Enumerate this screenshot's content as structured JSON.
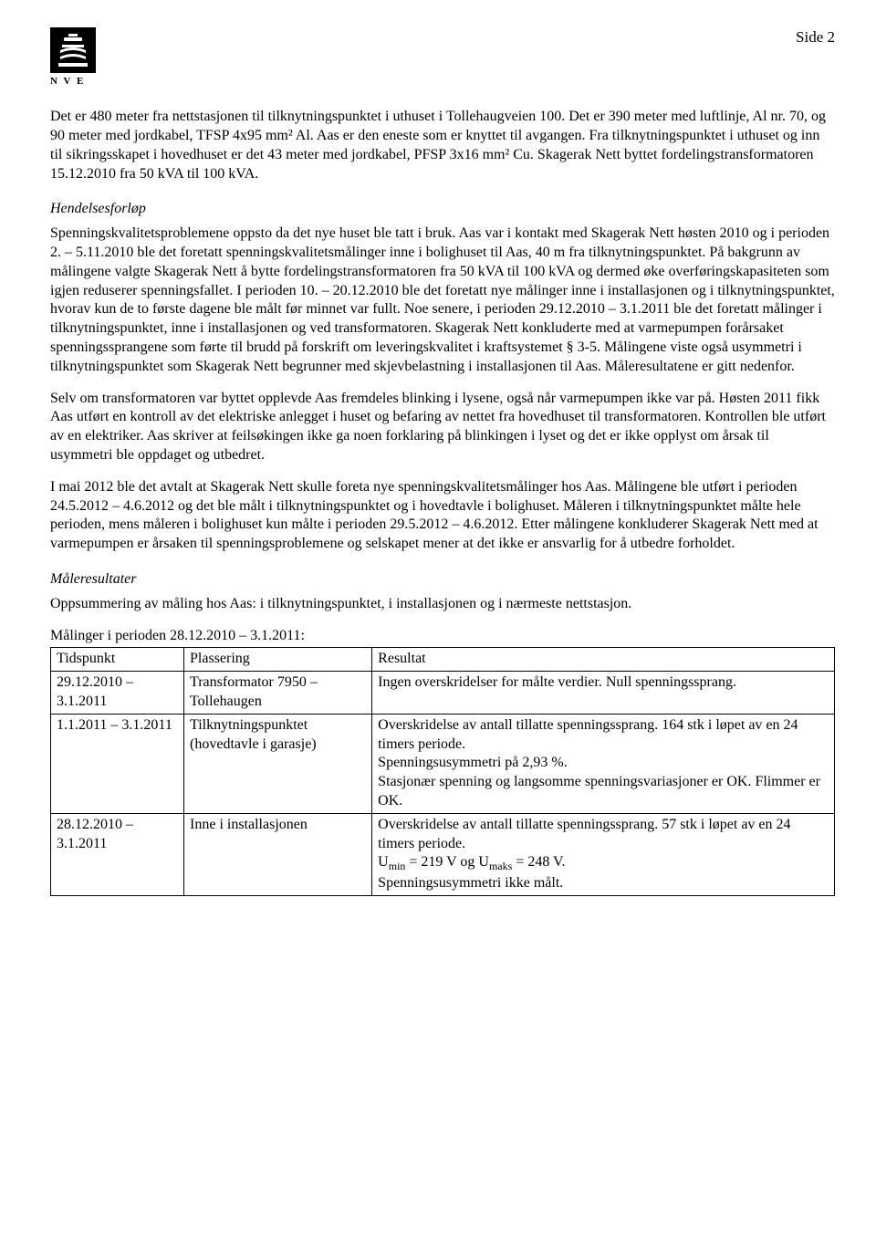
{
  "page_label": "Side 2",
  "logo_label": "N V E",
  "para1": "Det er 480 meter fra nettstasjonen til tilknytningspunktet i uthuset i Tollehaugveien 100. Det er 390 meter med luftlinje, Al nr. 70, og 90 meter med jordkabel, TFSP 4x95 mm² Al. Aas er den eneste som er knyttet til avgangen. Fra tilknytningspunktet i uthuset og inn til sikringsskapet i hovedhuset er det 43 meter med jordkabel, PFSP 3x16 mm² Cu. Skagerak Nett byttet fordelingstransformatoren 15.12.2010 fra 50 kVA til 100 kVA.",
  "h1": "Hendelsesforløp",
  "para2": "Spenningskvalitetsproblemene oppsto da det nye huset ble tatt i bruk. Aas var i kontakt med Skagerak Nett høsten 2010 og i perioden 2. – 5.11.2010 ble det foretatt spenningskvalitetsmålinger inne i bolighuset til Aas, 40 m fra tilknytningspunktet. På bakgrunn av målingene valgte Skagerak Nett å bytte fordelingstransformatoren fra 50 kVA til 100 kVA og dermed øke overføringskapasiteten som igjen reduserer spenningsfallet. I perioden 10. – 20.12.2010 ble det foretatt nye målinger inne i installasjonen og i tilknytningspunktet, hvorav kun de to første dagene ble målt før minnet var fullt. Noe senere, i perioden 29.12.2010 – 3.1.2011 ble det foretatt målinger i tilknytningspunktet, inne i installasjonen og ved transformatoren. Skagerak Nett konkluderte med at varmepumpen forårsaket spenningssprangene som førte til brudd på forskrift om leveringskvalitet i kraftsystemet § 3-5. Målingene viste også usymmetri i tilknytningspunktet som Skagerak Nett begrunner med skjevbelastning i installasjonen til Aas. Måleresultatene er gitt nedenfor.",
  "para3": "Selv om transformatoren var byttet opplevde Aas fremdeles blinking i lysene, også når varmepumpen ikke var på. Høsten 2011 fikk Aas utført en kontroll av det elektriske anlegget i huset og befaring av nettet fra hovedhuset til transformatoren. Kontrollen ble utført av en elektriker. Aas skriver at feilsøkingen ikke ga noen forklaring på blinkingen i lyset og det er ikke opplyst om årsak til usymmetri ble oppdaget og utbedret.",
  "para4": "I mai 2012 ble det avtalt at Skagerak Nett skulle foreta nye spenningskvalitetsmålinger hos Aas. Målingene ble utført i perioden 24.5.2012 – 4.6.2012 og det ble målt i tilknytningspunktet og i hovedtavle i bolighuset. Måleren i tilknytningspunktet målte hele perioden, mens måleren i bolighuset kun målte i perioden 29.5.2012 – 4.6.2012. Etter målingene konkluderer Skagerak Nett med at varmepumpen er årsaken til spenningsproblemene og selskapet mener at det ikke er ansvarlig for å utbedre forholdet.",
  "h2": "Måleresultater",
  "para5": "Oppsummering av måling hos Aas: i tilknytningspunktet, i installasjonen og i nærmeste nettstasjon.",
  "table_caption": "Målinger i perioden 28.12.2010 – 3.1.2011:",
  "table": {
    "headers": [
      "Tidspunkt",
      "Plassering",
      "Resultat"
    ],
    "rows": [
      {
        "time": "29.12.2010 – 3.1.2011",
        "place": "Transformator 7950 – Tollehaugen",
        "result": "Ingen overskridelser for målte verdier. Null spenningssprang."
      },
      {
        "time": "1.1.2011 – 3.1.2011",
        "place": "Tilknytningspunktet (hovedtavle i garasje)",
        "result": "Overskridelse av antall tillatte spenningssprang. 164 stk i løpet av en 24 timers periode.\nSpenningsusymmetri på 2,93 %.\nStasjonær spenning og langsomme spenningsvariasjoner er OK. Flimmer er OK."
      },
      {
        "time": "28.12.2010 – 3.1.2011",
        "place": "Inne i installasjonen",
        "result_html": "Overskridelse av antall tillatte spenningssprang. 57 stk i løpet av en 24 timers periode.<br>U<span class=\"sub\">min</span> = 219 V og U<span class=\"sub\">maks</span> = 248 V.<br>Spenningsusymmetri ikke målt."
      }
    ]
  }
}
